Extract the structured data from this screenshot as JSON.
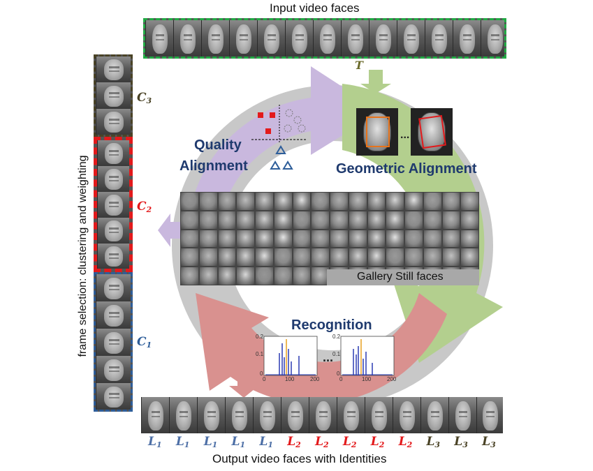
{
  "title_top": "Input video faces",
  "title_bottom": "Output video faces with Identities",
  "side_title": "frame  selection: clustering and weighting",
  "t_label": "T",
  "stages": {
    "quality": "Quality\nAlignment",
    "quality_line1": "Quality",
    "quality_line2": "Alignment",
    "geometric": "Geometric Alignment",
    "recognition": "Recognition"
  },
  "gallery_label": "Gallery Still faces",
  "clusters": [
    {
      "name": "C",
      "sub": "3",
      "color": "#4a4326"
    },
    {
      "name": "C",
      "sub": "2",
      "color": "#e31a1c"
    },
    {
      "name": "C",
      "sub": "1",
      "color": "#2e5e9a"
    }
  ],
  "ellipsis": "...",
  "identities": [
    {
      "name": "L",
      "sub": "1",
      "color": "#4d6fa6"
    },
    {
      "name": "L",
      "sub": "1",
      "color": "#4d6fa6"
    },
    {
      "name": "L",
      "sub": "1",
      "color": "#4d6fa6"
    },
    {
      "name": "L",
      "sub": "1",
      "color": "#4d6fa6"
    },
    {
      "name": "L",
      "sub": "1",
      "color": "#4d6fa6"
    },
    {
      "name": "L",
      "sub": "2",
      "color": "#e31a1c"
    },
    {
      "name": "L",
      "sub": "2",
      "color": "#e31a1c"
    },
    {
      "name": "L",
      "sub": "2",
      "color": "#e31a1c"
    },
    {
      "name": "L",
      "sub": "2",
      "color": "#e31a1c"
    },
    {
      "name": "L",
      "sub": "2",
      "color": "#e31a1c"
    },
    {
      "name": "L",
      "sub": "3",
      "color": "#4a4326"
    },
    {
      "name": "L",
      "sub": "3",
      "color": "#4a4326"
    },
    {
      "name": "L",
      "sub": "3",
      "color": "#4a4326"
    }
  ],
  "colors": {
    "input_border": "#22aa44",
    "quality_arrow": "#c9b8de",
    "geometric_arrow": "#b3cf8e",
    "recognition_arrow": "#d9918f",
    "stage_text": "#1f3a6e"
  },
  "histogram_ticks": {
    "y": [
      "0.2",
      "0.1",
      "0"
    ],
    "x": [
      "0",
      "100",
      "200"
    ]
  }
}
